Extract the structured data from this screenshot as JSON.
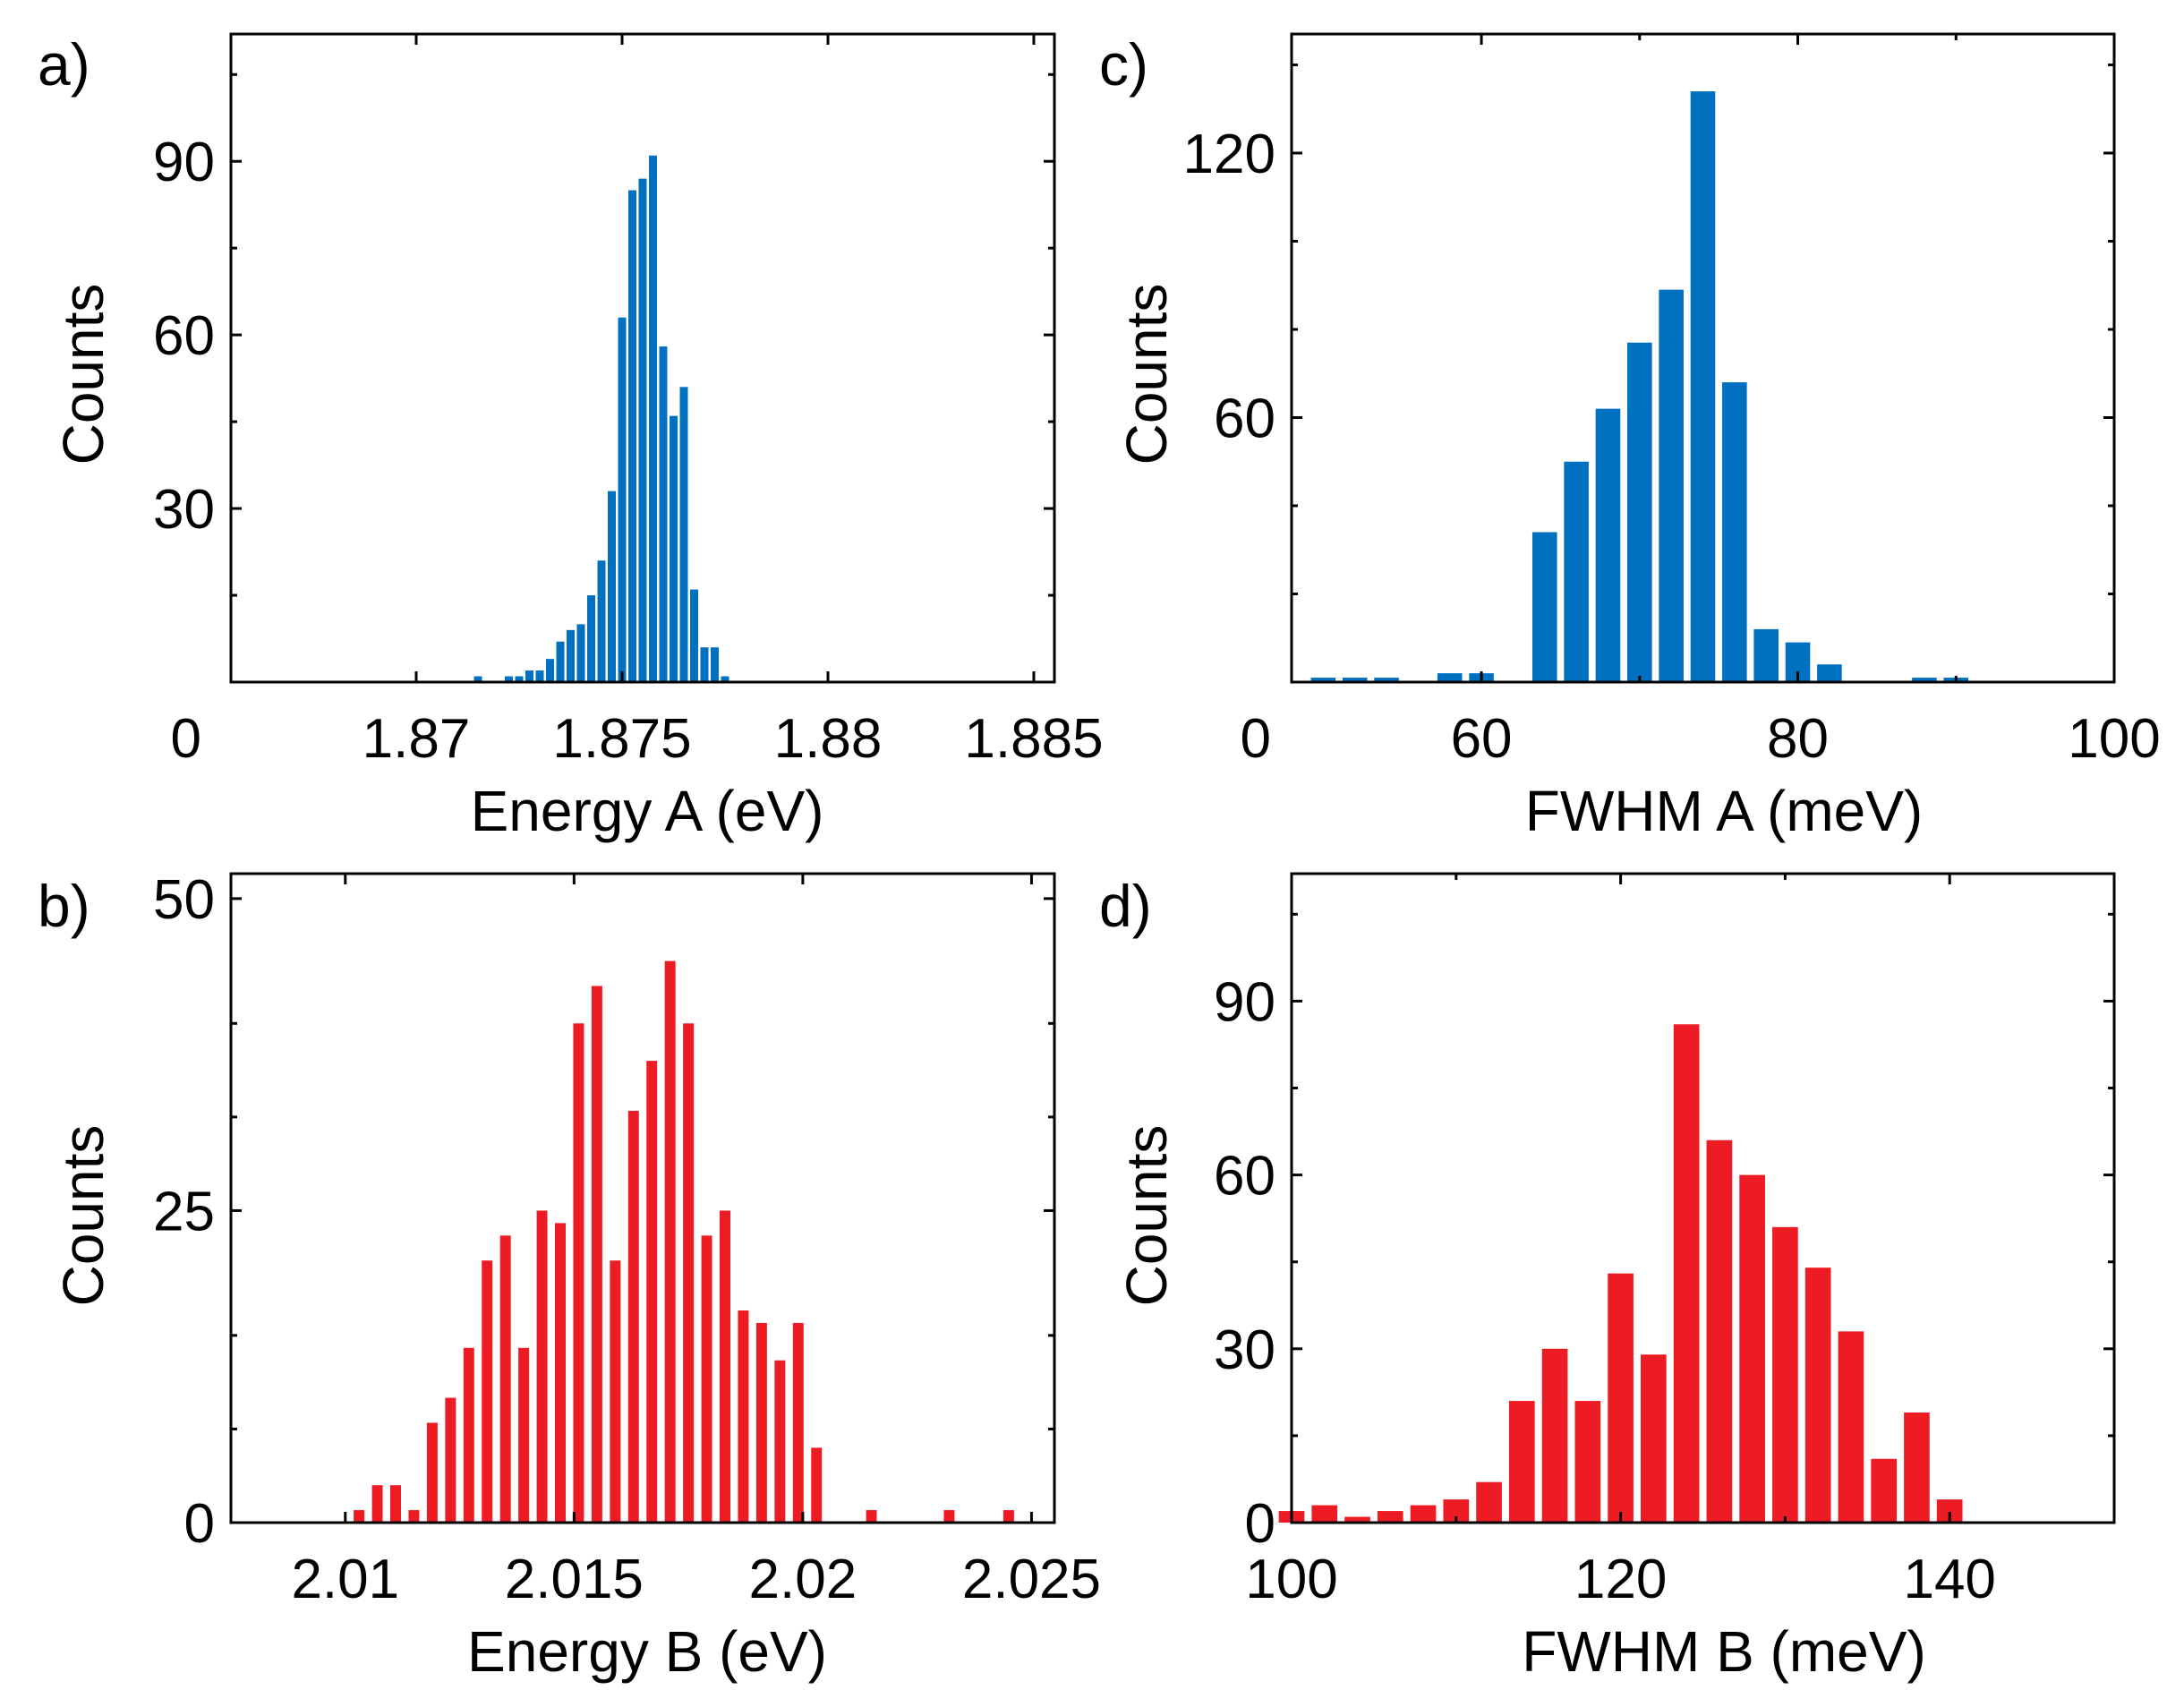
{
  "figure": {
    "panels": [
      "a)",
      "b)",
      "c)",
      "d)"
    ]
  },
  "colors": {
    "blue": "#0070C0",
    "red": "#ED1C24",
    "axis": "#000000"
  },
  "chart_data": [
    {
      "id": "a",
      "panel_label": "a)",
      "type": "bar",
      "xlabel": "Energy A (eV)",
      "ylabel": "Counts",
      "xlim": [
        1.8655,
        1.8855
      ],
      "ylim": [
        0,
        112
      ],
      "bin_width": 0.00025,
      "xticks": [
        1.87,
        1.875,
        1.88,
        1.885
      ],
      "xtick_labels": [
        "1.87",
        "1.875",
        "1.88",
        "1.885"
      ],
      "yticks": [
        30,
        60,
        90
      ],
      "ytick_labels": [
        "30",
        "60",
        "90"
      ],
      "origin_label": "0",
      "minor_x": [],
      "minor_y": [
        15,
        45,
        75,
        105
      ],
      "color": "#0070C0",
      "bins": [
        {
          "x": 1.8715,
          "y": 1
        },
        {
          "x": 1.87225,
          "y": 1
        },
        {
          "x": 1.8725,
          "y": 1
        },
        {
          "x": 1.87275,
          "y": 2
        },
        {
          "x": 1.873,
          "y": 2
        },
        {
          "x": 1.87325,
          "y": 4
        },
        {
          "x": 1.8735,
          "y": 7
        },
        {
          "x": 1.87375,
          "y": 9
        },
        {
          "x": 1.874,
          "y": 10
        },
        {
          "x": 1.87425,
          "y": 15
        },
        {
          "x": 1.8745,
          "y": 21
        },
        {
          "x": 1.87475,
          "y": 33
        },
        {
          "x": 1.875,
          "y": 63
        },
        {
          "x": 1.87525,
          "y": 85
        },
        {
          "x": 1.8755,
          "y": 87
        },
        {
          "x": 1.87575,
          "y": 91
        },
        {
          "x": 1.876,
          "y": 58
        },
        {
          "x": 1.87625,
          "y": 46
        },
        {
          "x": 1.8765,
          "y": 51
        },
        {
          "x": 1.87675,
          "y": 16
        },
        {
          "x": 1.877,
          "y": 6
        },
        {
          "x": 1.87725,
          "y": 6
        },
        {
          "x": 1.8775,
          "y": 1
        }
      ]
    },
    {
      "id": "b",
      "panel_label": "b)",
      "type": "bar",
      "xlabel": "Energy B (eV)",
      "ylabel": "Counts",
      "xlim": [
        2.0075,
        2.0255
      ],
      "ylim": [
        0,
        52
      ],
      "bin_width": 0.0003,
      "xticks": [
        2.01,
        2.015,
        2.02,
        2.025
      ],
      "xtick_labels": [
        "2.01",
        "2.015",
        "2.02",
        "2.025"
      ],
      "yticks": [
        0,
        25,
        50
      ],
      "ytick_labels": [
        "0",
        "25",
        "50"
      ],
      "origin_label": "",
      "minor_x": [],
      "minor_y": [
        7.5,
        15,
        32.5,
        40
      ],
      "color": "#ED1C24",
      "bins": [
        {
          "x": 2.0103,
          "y": 1
        },
        {
          "x": 2.0107,
          "y": 3
        },
        {
          "x": 2.0111,
          "y": 3
        },
        {
          "x": 2.0115,
          "y": 1
        },
        {
          "x": 2.0119,
          "y": 8
        },
        {
          "x": 2.0123,
          "y": 10
        },
        {
          "x": 2.0127,
          "y": 14
        },
        {
          "x": 2.0131,
          "y": 21
        },
        {
          "x": 2.0135,
          "y": 23
        },
        {
          "x": 2.0139,
          "y": 14
        },
        {
          "x": 2.0143,
          "y": 25
        },
        {
          "x": 2.0147,
          "y": 24
        },
        {
          "x": 2.0151,
          "y": 40
        },
        {
          "x": 2.0155,
          "y": 43
        },
        {
          "x": 2.0159,
          "y": 21
        },
        {
          "x": 2.0163,
          "y": 33
        },
        {
          "x": 2.0167,
          "y": 37
        },
        {
          "x": 2.0171,
          "y": 45
        },
        {
          "x": 2.0175,
          "y": 40
        },
        {
          "x": 2.0179,
          "y": 23
        },
        {
          "x": 2.0183,
          "y": 25
        },
        {
          "x": 2.0187,
          "y": 17
        },
        {
          "x": 2.0191,
          "y": 16
        },
        {
          "x": 2.0195,
          "y": 13
        },
        {
          "x": 2.0199,
          "y": 16
        },
        {
          "x": 2.0203,
          "y": 6
        },
        {
          "x": 2.0215,
          "y": 1
        },
        {
          "x": 2.0232,
          "y": 1
        },
        {
          "x": 2.0245,
          "y": 1
        }
      ]
    },
    {
      "id": "c",
      "panel_label": "c)",
      "type": "bar",
      "xlabel": "FWHM A (meV)",
      "ylabel": "Counts",
      "xlim": [
        48,
        100
      ],
      "ylim": [
        0,
        147
      ],
      "bin_width": 2,
      "xticks": [
        60,
        80,
        100
      ],
      "xtick_labels": [
        "60",
        "80",
        "100"
      ],
      "yticks": [
        60,
        120
      ],
      "ytick_labels": [
        "60",
        "120"
      ],
      "origin_label": "0",
      "minor_x": [
        70,
        90
      ],
      "minor_y": [
        20,
        40,
        80,
        100,
        140
      ],
      "color": "#0070C0",
      "bins": [
        {
          "x": 50,
          "y": 1
        },
        {
          "x": 52,
          "y": 1
        },
        {
          "x": 54,
          "y": 1
        },
        {
          "x": 58,
          "y": 2
        },
        {
          "x": 60,
          "y": 2
        },
        {
          "x": 64,
          "y": 34
        },
        {
          "x": 66,
          "y": 50
        },
        {
          "x": 68,
          "y": 62
        },
        {
          "x": 70,
          "y": 77
        },
        {
          "x": 72,
          "y": 89
        },
        {
          "x": 74,
          "y": 134
        },
        {
          "x": 76,
          "y": 68
        },
        {
          "x": 78,
          "y": 12
        },
        {
          "x": 80,
          "y": 9
        },
        {
          "x": 82,
          "y": 4
        },
        {
          "x": 88,
          "y": 1
        },
        {
          "x": 90,
          "y": 1
        }
      ]
    },
    {
      "id": "d",
      "panel_label": "d)",
      "type": "bar",
      "xlabel": "FWHM B (meV)",
      "ylabel": "Counts",
      "xlim": [
        100,
        150
      ],
      "ylim": [
        0,
        112
      ],
      "bin_width": 2,
      "xticks": [
        100,
        120,
        140
      ],
      "xtick_labels": [
        "100",
        "120",
        "140"
      ],
      "yticks": [
        0,
        30,
        60,
        90
      ],
      "ytick_labels": [
        "0",
        "30",
        "60",
        "90"
      ],
      "origin_label": "",
      "minor_x": [
        110,
        130
      ],
      "minor_y": [
        15,
        45,
        75,
        105
      ],
      "color": "#ED1C24",
      "bins": [
        {
          "x": 100,
          "y": 2
        },
        {
          "x": 102,
          "y": 3
        },
        {
          "x": 104,
          "y": 1
        },
        {
          "x": 106,
          "y": 2
        },
        {
          "x": 108,
          "y": 3
        },
        {
          "x": 110,
          "y": 4
        },
        {
          "x": 112,
          "y": 7
        },
        {
          "x": 114,
          "y": 21
        },
        {
          "x": 116,
          "y": 30
        },
        {
          "x": 118,
          "y": 21
        },
        {
          "x": 120,
          "y": 43
        },
        {
          "x": 122,
          "y": 29
        },
        {
          "x": 124,
          "y": 86
        },
        {
          "x": 126,
          "y": 66
        },
        {
          "x": 128,
          "y": 60
        },
        {
          "x": 130,
          "y": 51
        },
        {
          "x": 132,
          "y": 44
        },
        {
          "x": 134,
          "y": 33
        },
        {
          "x": 136,
          "y": 11
        },
        {
          "x": 138,
          "y": 19
        },
        {
          "x": 140,
          "y": 4
        }
      ]
    }
  ]
}
